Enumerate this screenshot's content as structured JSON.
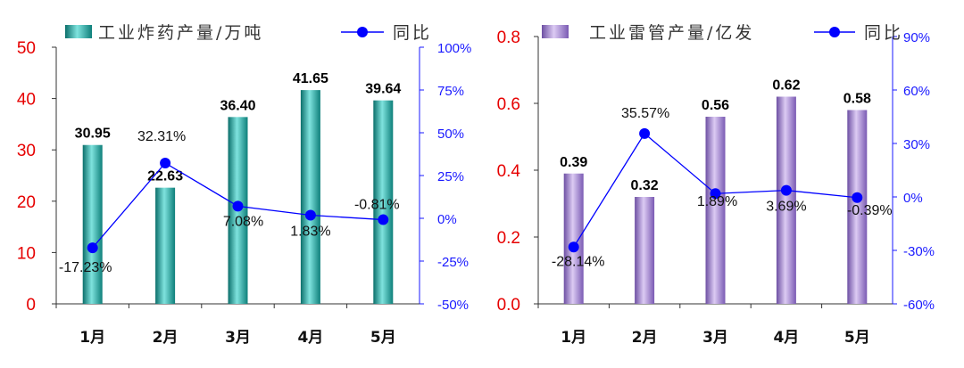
{
  "chart_data": [
    {
      "type": "bar+line",
      "categories": [
        "1月",
        "2月",
        "3月",
        "4月",
        "5月"
      ],
      "series": [
        {
          "name": "工业炸药产量/万吨",
          "type": "bar",
          "axis": "left",
          "values": [
            30.95,
            22.63,
            36.4,
            41.65,
            39.64
          ],
          "labels": [
            "30.95",
            "22.63",
            "36.40",
            "41.65",
            "39.64"
          ]
        },
        {
          "name": "同比",
          "type": "line",
          "axis": "right",
          "values": [
            -17.23,
            32.31,
            7.08,
            1.83,
            -0.81
          ],
          "labels": [
            "-17.23%",
            "32.31%",
            "7.08%",
            "1.83%",
            "-0.81%"
          ]
        }
      ],
      "left_axis": {
        "ylim": [
          0,
          50
        ],
        "ticks": [
          0,
          10,
          20,
          30,
          40,
          50
        ],
        "tick_labels": [
          "0",
          "10",
          "20",
          "30",
          "40",
          "50"
        ]
      },
      "right_axis": {
        "ylim": [
          -50,
          100
        ],
        "ticks": [
          -50,
          -25,
          0,
          25,
          50,
          75,
          100
        ],
        "tick_labels": [
          "-50%",
          "-25%",
          "0%",
          "25%",
          "50%",
          "75%",
          "100%"
        ]
      },
      "grid": false,
      "legend_position": "top",
      "colors": {
        "bar": "#1aa7a1",
        "bar_dark": "#0b6f6b",
        "bar_light": "#7fe3de",
        "line": "#0000ff",
        "left_axis": "#e60000",
        "right_axis": "#1a1aff"
      }
    },
    {
      "type": "bar+line",
      "categories": [
        "1月",
        "2月",
        "3月",
        "4月",
        "5月"
      ],
      "series": [
        {
          "name": "工业雷管产量/亿发",
          "type": "bar",
          "axis": "left",
          "values": [
            0.39,
            0.32,
            0.56,
            0.62,
            0.58
          ],
          "labels": [
            "0.39",
            "0.32",
            "0.56",
            "0.62",
            "0.58"
          ]
        },
        {
          "name": "同比",
          "type": "line",
          "axis": "right",
          "values": [
            -28.14,
            35.57,
            1.89,
            3.69,
            -0.39
          ],
          "labels": [
            "-28.14%",
            "35.57%",
            "1.89%",
            "3.69%",
            "-0.39%"
          ]
        }
      ],
      "left_axis": {
        "ylim": [
          0,
          0.8
        ],
        "ticks": [
          0,
          0.2,
          0.4,
          0.6,
          0.8
        ],
        "tick_labels": [
          "0.0",
          "0.2",
          "0.4",
          "0.6",
          "0.8"
        ]
      },
      "right_axis": {
        "ylim": [
          -60,
          90
        ],
        "ticks": [
          -60,
          -30,
          0,
          30,
          60,
          90
        ],
        "tick_labels": [
          "-60%",
          "-30%",
          "0%",
          "30%",
          "60%",
          "90%"
        ]
      },
      "grid": false,
      "legend_position": "top",
      "colors": {
        "bar": "#a98ad6",
        "bar_dark": "#6d4fa3",
        "bar_light": "#dccbf3",
        "line": "#0000ff",
        "left_axis": "#e60000",
        "right_axis": "#1a1aff"
      }
    }
  ]
}
